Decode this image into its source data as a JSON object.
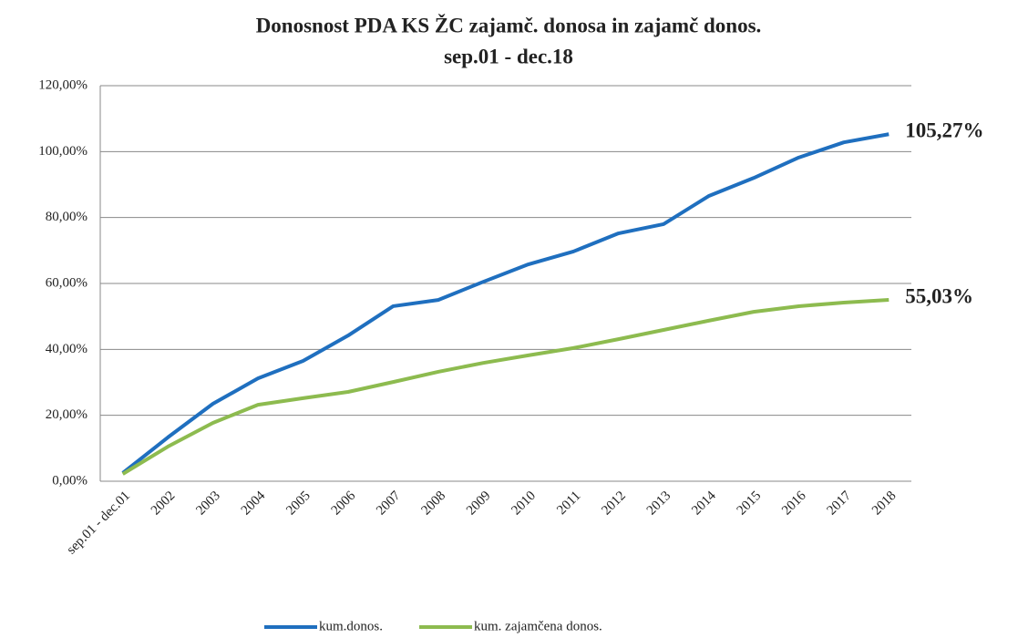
{
  "chart_data": {
    "type": "line",
    "title": "Donosnost PDA KS ŽC zajamč. donosa in zajamč donos.",
    "subtitle": "sep.01 - dec.18",
    "categories": [
      "sep.01 - dec.01",
      "2002",
      "2003",
      "2004",
      "2005",
      "2006",
      "2007",
      "2008",
      "2009",
      "2010",
      "2011",
      "2012",
      "2013",
      "2014",
      "2015",
      "2016",
      "2017",
      "2018"
    ],
    "series": [
      {
        "name": "kum.donos.",
        "color": "#1f6fbf",
        "values": [
          2.5,
          13.3,
          23.5,
          31.2,
          36.5,
          44.2,
          53.1,
          55.0,
          60.5,
          65.8,
          69.7,
          75.2,
          78.0,
          86.5,
          92.0,
          98.2,
          102.8,
          105.27
        ],
        "value_labels": [
          null,
          null,
          null,
          null,
          null,
          null,
          null,
          null,
          null,
          null,
          null,
          null,
          null,
          null,
          null,
          null,
          null,
          "105,27%"
        ]
      },
      {
        "name": "kum. zajamčena donos.",
        "color": "#8dbb4f",
        "values": [
          2.2,
          10.5,
          17.7,
          23.2,
          25.2,
          27.1,
          30.1,
          33.2,
          35.9,
          38.2,
          40.4,
          43.1,
          45.9,
          48.7,
          51.4,
          53.1,
          54.2,
          55.03
        ],
        "value_labels": [
          null,
          null,
          null,
          null,
          null,
          null,
          null,
          null,
          null,
          null,
          null,
          null,
          null,
          null,
          null,
          null,
          null,
          "55,03%"
        ]
      }
    ],
    "ylim": [
      0,
      120
    ],
    "yticks": [
      {
        "value": 0,
        "label": "0,00%"
      },
      {
        "value": 20,
        "label": "20,00%"
      },
      {
        "value": 40,
        "label": "40,00%"
      },
      {
        "value": 60,
        "label": "60,00%"
      },
      {
        "value": 80,
        "label": "80,00%"
      },
      {
        "value": 100,
        "label": "100,00%"
      },
      {
        "value": 120,
        "label": "120,00%"
      }
    ],
    "grid": true,
    "legend": "bottom"
  }
}
